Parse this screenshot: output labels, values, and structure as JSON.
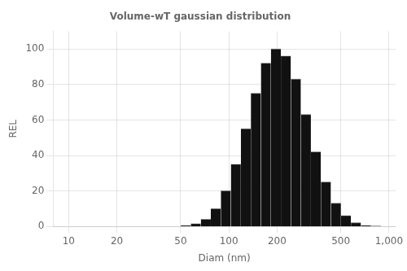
{
  "chart_data": {
    "type": "histogram",
    "title": "Volume-wT gaussian distribution",
    "xlabel": "Diam (nm)",
    "ylabel": "REL",
    "bins": [
      50.1187,
      57.8762,
      66.8344,
      77.1792,
      89.1251,
      102.9201,
      118.8502,
      137.2461,
      158.4893,
      183.0206,
      211.3489,
      244.0619,
      281.8383,
      325.4618,
      375.8374,
      434.0103,
      501.1872,
      578.762,
      668.3439,
      771.7915,
      891.2509
    ],
    "values": [
      0.5,
      1.5,
      4,
      10,
      20,
      35,
      55,
      75,
      92,
      100,
      96,
      83,
      63,
      42,
      25,
      13,
      6,
      2,
      0.5,
      0.2
    ],
    "color": "#111111",
    "log": "x",
    "xlim": [
      8,
      1100
    ],
    "ylim": [
      0,
      110
    ],
    "xticks": [
      10,
      20,
      50,
      100,
      200,
      500,
      {
        "value": 1000,
        "label": "1,000"
      }
    ],
    "yticks": [
      0,
      20,
      40,
      60,
      80,
      100
    ],
    "grid": true
  }
}
